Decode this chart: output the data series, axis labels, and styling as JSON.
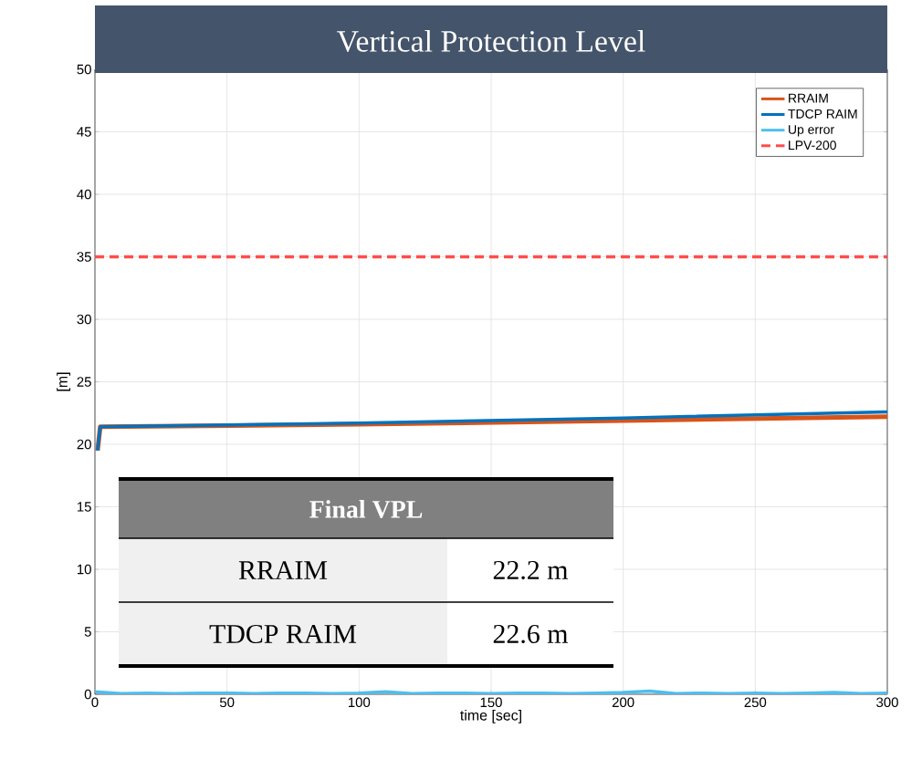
{
  "chart_data": {
    "type": "line",
    "title": "Vertical Protection Level",
    "xlabel": "time [sec]",
    "ylabel": "[m]",
    "xlim": [
      0,
      300
    ],
    "ylim": [
      0,
      50
    ],
    "xticks": [
      0,
      50,
      100,
      150,
      200,
      250,
      300
    ],
    "yticks": [
      0,
      5,
      10,
      15,
      20,
      25,
      30,
      35,
      40,
      45,
      50
    ],
    "grid": true,
    "legend": "top right",
    "line_style": "solid",
    "marker": "none",
    "series": [
      {
        "name": "RRAIM",
        "color": "#d95319",
        "x": [
          1,
          2,
          100,
          200,
          300
        ],
        "values": [
          19.5,
          21.4,
          21.6,
          21.9,
          22.2
        ]
      },
      {
        "name": "TDCP RAIM",
        "color": "#0072bd",
        "x": [
          1,
          2,
          100,
          200,
          300
        ],
        "values": [
          19.5,
          21.4,
          21.7,
          22.1,
          22.6
        ]
      },
      {
        "name": "Up error",
        "color": "#4dbeee",
        "x": [
          0,
          10,
          20,
          30,
          40,
          50,
          60,
          70,
          80,
          90,
          100,
          110,
          120,
          130,
          140,
          150,
          160,
          170,
          180,
          190,
          200,
          210,
          220,
          230,
          240,
          250,
          260,
          270,
          280,
          290,
          300
        ],
        "values": [
          0.2,
          0.05,
          0.1,
          0.05,
          0.1,
          0.1,
          0.05,
          0.1,
          0.1,
          0.05,
          0.1,
          0.2,
          0.05,
          0.1,
          0.1,
          0.05,
          0.1,
          0.1,
          0.05,
          0.1,
          0.15,
          0.25,
          0.05,
          0.1,
          0.05,
          0.1,
          0.05,
          0.1,
          0.15,
          0.05,
          0.1
        ]
      }
    ],
    "ref_lines": [
      {
        "axis": "y",
        "value": 35,
        "label": "LPV-200",
        "color": "#ff4d4d",
        "line_style": "dashed"
      }
    ],
    "annotations": [
      "Final VPL",
      "RRAIM",
      "22.2 m",
      "TDCP RAIM",
      "22.6 m"
    ]
  }
}
